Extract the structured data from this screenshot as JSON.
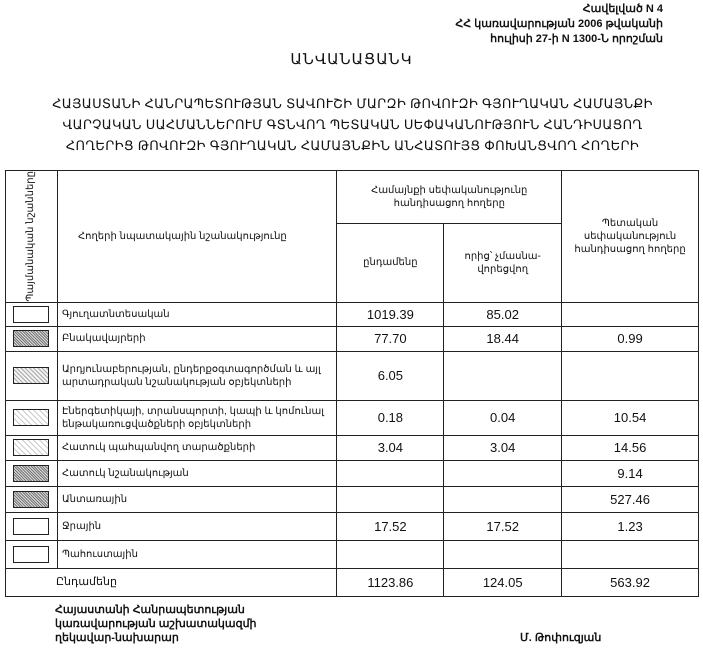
{
  "annex": {
    "line1": "Հավելված N 4",
    "line2": "ՀՀ կառավարության 2006 թվականի",
    "line3": "հուլիսի 27-ի N 1300-Ն որոշման"
  },
  "title": "ԱՆՎԱՆԱՑԱՆԿ",
  "subtitle": {
    "line1": "ՀԱՅԱՍՏԱՆԻ ՀԱՆՐԱՊԵՏՈՒԹՅԱՆ ՏԱՎՈՒՇԻ ՄԱՐԶԻ ԹՈՎՈՒԶԻ ԳՅՈՒՂԱԿԱՆ ՀԱՄԱՅՆՔԻ",
    "line2": "ՎԱՐՉԱԿԱՆ ՍԱՀՄԱՆՆԵՐՈՒՄ ԳՏՆՎՈՂ ՊԵՏԱԿԱՆ ՍԵՓԱԿԱՆՈՒԹՅՈՒՆ ՀԱՆԴԻՍԱՑՈՂ",
    "line3": "ՀՈՂԵՐԻՑ ԹՈՎՈՒԶԻ ԳՅՈՒՂԱԿԱՆ ՀԱՄԱՅՆՔԻՆ ԱՆՀԱՏՈՒՅՑ ՓՈԽԱՆՑՎՈՂ ՀՈՂԵՐԻ"
  },
  "table": {
    "headers": {
      "legend": "Պայմանական նշանները",
      "purpose": "Հողերի նպատակային նշանակությունը",
      "community": "Համայնքի սեփականությունը հանդիսացող հողերը",
      "total": "ընդամենը",
      "non_privatized": "որից՝ չմասնա-վորեցվող",
      "state": "Պետական սեփականություն հանդիսացող հողերը"
    },
    "rows": [
      {
        "swatch": "plain",
        "name": "Գյուղատնտեսական",
        "total": "1019.39",
        "non_privatized": "85.02",
        "state": ""
      },
      {
        "swatch": "dense",
        "name": "Բնակավայրերի",
        "total": "77.70",
        "non_privatized": "18.44",
        "state": "0.99"
      },
      {
        "swatch": "med",
        "name": "Արդյունաբերության, ընդերքօգտագործման և այլ արտադրական նշանակության օբյեկտների",
        "total": "6.05",
        "non_privatized": "",
        "state": ""
      },
      {
        "swatch": "light",
        "name": "Էներգետիկայի, տրանսպորտի, կապի և կոմունալ ենթակառուցվածքների օբյեկտների",
        "total": "0.18",
        "non_privatized": "0.04",
        "state": "10.54"
      },
      {
        "swatch": "light",
        "name": "Հատուկ պահպանվող տարածքների",
        "total": "3.04",
        "non_privatized": "3.04",
        "state": "14.56"
      },
      {
        "swatch": "dense",
        "name": "Հատուկ նշանակության",
        "total": "",
        "non_privatized": "",
        "state": "9.14"
      },
      {
        "swatch": "dense",
        "name": "Անտառային",
        "total": "",
        "non_privatized": "",
        "state": "527.46"
      },
      {
        "swatch": "plain",
        "name": "Ջրային",
        "total": "17.52",
        "non_privatized": "17.52",
        "state": "1.23"
      },
      {
        "swatch": "plain",
        "name": "Պահուստային",
        "total": "",
        "non_privatized": "",
        "state": ""
      }
    ],
    "totals": {
      "label": "Ընդամենը",
      "total": "1123.86",
      "non_privatized": "124.05",
      "state": "563.92"
    }
  },
  "footer": {
    "line1": "Հայաստանի Հանրապետության",
    "line2": "կառավարության աշխատակազմի",
    "line3": "ղեկավար-նախարար",
    "signatory": "Մ. Թոփուզյան"
  }
}
